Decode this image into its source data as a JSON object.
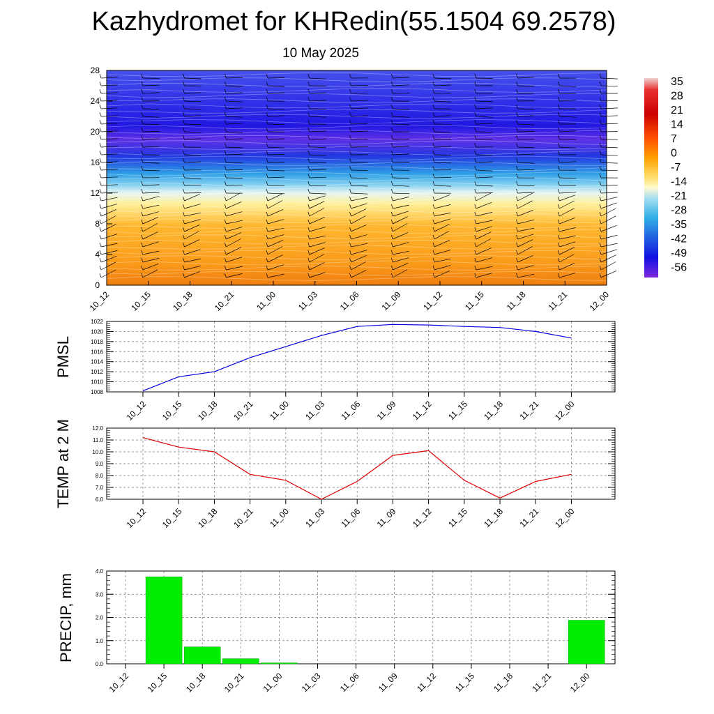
{
  "title": "Kazhydromet for KHRedin(55.1504 69.2578)",
  "subtitle": "10 May 2025",
  "colors": {
    "pmsl_line": "#0000dd",
    "temp_line": "#dd0000",
    "precip_bar": "#00ee00"
  },
  "colorbar": {
    "labels": [
      "35",
      "28",
      "21",
      "14",
      "7",
      "0",
      "-7",
      "-14",
      "-21",
      "-28",
      "-35",
      "-42",
      "-49",
      "-56"
    ]
  },
  "chart_data": [
    {
      "type": "heatmap",
      "title": "",
      "x_ticks": [
        "10_12",
        "10_15",
        "10_18",
        "10_21",
        "11_00",
        "11_03",
        "11_06",
        "11_09",
        "11_12",
        "11_15",
        "11_18",
        "11_21",
        "12_00"
      ],
      "y_ticks": [
        "0",
        "4",
        "8",
        "12",
        "16",
        "20",
        "24",
        "28"
      ],
      "ylim": [
        0,
        28
      ],
      "color_range": [
        -56,
        35
      ],
      "approx_temperature_profile": [
        {
          "level": 0,
          "value": 12
        },
        {
          "level": 4,
          "value": 9
        },
        {
          "level": 8,
          "value": 3
        },
        {
          "level": 11,
          "value": -5
        },
        {
          "level": 12.5,
          "value": -20
        },
        {
          "level": 15,
          "value": -35
        },
        {
          "level": 18,
          "value": -55
        },
        {
          "level": 20,
          "value": -57
        },
        {
          "level": 24,
          "value": -52
        },
        {
          "level": 28,
          "value": -48
        }
      ],
      "wind_barbs": true
    },
    {
      "type": "line",
      "ylabel": "PMSL",
      "x": [
        "10_12",
        "10_15",
        "10_18",
        "10_21",
        "11_00",
        "11_03",
        "11_06",
        "11_09",
        "11_12",
        "11_15",
        "11_18",
        "11_21",
        "12_00"
      ],
      "y_ticks": [
        "1008",
        "1010",
        "1012",
        "1014",
        "1016",
        "1018",
        "1020",
        "1022"
      ],
      "ylim": [
        1008,
        1022
      ],
      "values": [
        1008.2,
        1011.0,
        1012.0,
        1014.8,
        1017.0,
        1019.2,
        1021.0,
        1021.4,
        1021.3,
        1021.0,
        1020.8,
        1020.0,
        1018.7
      ],
      "grid": true
    },
    {
      "type": "line",
      "ylabel": "TEMP at 2 M",
      "x": [
        "10_12",
        "10_15",
        "10_18",
        "10_21",
        "11_00",
        "11_03",
        "11_06",
        "11_09",
        "11_12",
        "11_15",
        "11_18",
        "11_21",
        "12_00"
      ],
      "y_ticks": [
        "6.0",
        "7.0",
        "8.0",
        "9.0",
        "10.0",
        "11.0",
        "12.0"
      ],
      "ylim": [
        6,
        12
      ],
      "values": [
        11.2,
        10.4,
        10.0,
        8.1,
        7.6,
        6.0,
        7.5,
        9.7,
        10.1,
        7.6,
        6.1,
        7.5,
        8.1
      ],
      "grid": true
    },
    {
      "type": "bar",
      "ylabel": "PRECIP, mm",
      "categories": [
        "10_12",
        "10_15",
        "10_18",
        "10_21",
        "11_00",
        "11_03",
        "11_06",
        "11_09",
        "11_12",
        "11_15",
        "11_18",
        "11_21",
        "12_00"
      ],
      "y_ticks": [
        "0.0",
        "1.0",
        "2.0",
        "3.0",
        "4.0"
      ],
      "ylim": [
        0,
        4
      ],
      "values": [
        0,
        3.75,
        0.73,
        0.22,
        0.04,
        0,
        0,
        0,
        0,
        0,
        0,
        0,
        1.88
      ],
      "grid": true
    }
  ]
}
